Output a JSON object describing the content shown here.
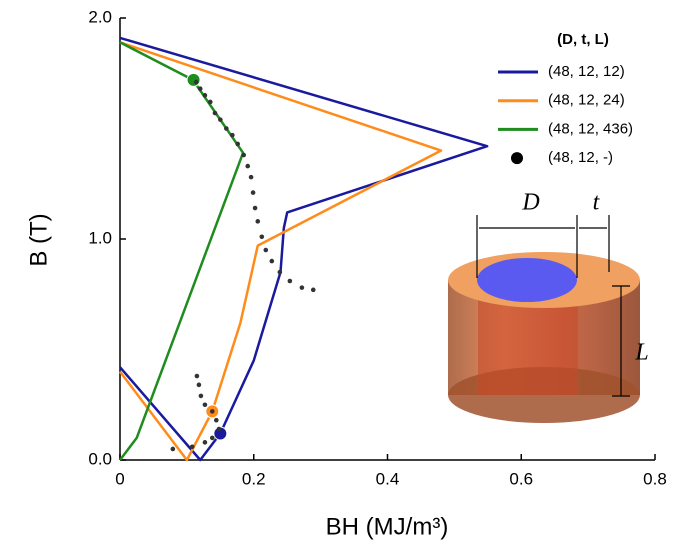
{
  "chart_data": {
    "type": "line",
    "xlabel": "BH (MJ/m³)",
    "ylabel": "B (T)",
    "xlim": [
      0,
      0.8
    ],
    "ylim": [
      0,
      2.0
    ],
    "xticks": [
      0,
      0.2,
      0.4,
      0.6,
      0.8
    ],
    "yticks": [
      {
        "value": 0,
        "label": "0.0"
      },
      {
        "value": 1,
        "label": "1.0"
      },
      {
        "value": 2,
        "label": "2.0"
      }
    ],
    "legend_title": "(D, t, L)",
    "legend": "upper right",
    "series": [
      {
        "name": "(48, 12, 12)",
        "color": "#1a1a9e",
        "type": "line",
        "x": [
          0,
          0.12,
          0.15,
          0.2,
          0.24,
          0.245,
          0.25,
          0.549,
          0
        ],
        "values": [
          0.42,
          0.0,
          0.12,
          0.45,
          0.85,
          1.05,
          1.12,
          1.42,
          1.91
        ],
        "marker": [
          0.15,
          0.12
        ]
      },
      {
        "name": "(48, 12, 24)",
        "color": "#ff8c1a",
        "type": "line",
        "x": [
          0,
          0.1,
          0.138,
          0.18,
          0.206,
          0.48,
          0
        ],
        "values": [
          0.4,
          0.0,
          0.22,
          0.62,
          0.97,
          1.4,
          1.89
        ],
        "marker": [
          0.138,
          0.22
        ]
      },
      {
        "name": "(48, 12, 436)",
        "color": "#1e8c1e",
        "type": "line",
        "x": [
          0,
          0.025,
          0.184,
          0.109,
          0
        ],
        "values": [
          0.0,
          0.1,
          1.39,
          1.72,
          1.89
        ],
        "marker": [
          0.11,
          1.72
        ]
      },
      {
        "name": "(48, 12, -)",
        "color": "#333333",
        "type": "scatter",
        "x": [
          0.114,
          0.12,
          0.127,
          0.135,
          0.142,
          0.15,
          0.159,
          0.168,
          0.176,
          0.185,
          0.191,
          0.196,
          0.199,
          0.202,
          0.206,
          0.212,
          0.218,
          0.227,
          0.239,
          0.254,
          0.272,
          0.289,
          0.115,
          0.118,
          0.121,
          0.127,
          0.138,
          0.144,
          0.148,
          0.138,
          0.127,
          0.108,
          0.079
        ],
        "values": [
          1.71,
          1.68,
          1.65,
          1.62,
          1.57,
          1.54,
          1.5,
          1.47,
          1.43,
          1.38,
          1.33,
          1.28,
          1.21,
          1.14,
          1.08,
          1.01,
          0.95,
          0.9,
          0.85,
          0.81,
          0.78,
          0.77,
          0.38,
          0.34,
          0.29,
          0.25,
          0.22,
          0.18,
          0.14,
          0.1,
          0.08,
          0.06,
          0.05
        ]
      }
    ],
    "annotations": [
      "D",
      "t",
      "L"
    ]
  }
}
